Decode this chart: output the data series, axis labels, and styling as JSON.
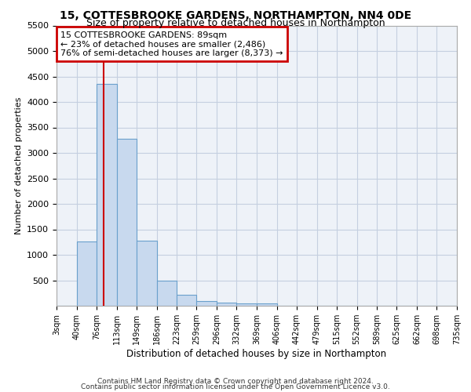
{
  "title": "15, COTTESBROOKE GARDENS, NORTHAMPTON, NN4 0DE",
  "subtitle": "Size of property relative to detached houses in Northampton",
  "xlabel": "Distribution of detached houses by size in Northampton",
  "ylabel": "Number of detached properties",
  "bin_labels": [
    "3sqm",
    "40sqm",
    "76sqm",
    "113sqm",
    "149sqm",
    "186sqm",
    "223sqm",
    "259sqm",
    "296sqm",
    "332sqm",
    "369sqm",
    "406sqm",
    "442sqm",
    "479sqm",
    "515sqm",
    "552sqm",
    "589sqm",
    "625sqm",
    "662sqm",
    "698sqm",
    "735sqm"
  ],
  "bin_edges": [
    3,
    40,
    76,
    113,
    149,
    186,
    223,
    259,
    296,
    332,
    369,
    406,
    442,
    479,
    515,
    552,
    589,
    625,
    662,
    698,
    735
  ],
  "bar_heights": [
    0,
    1255,
    4350,
    3280,
    1280,
    490,
    220,
    100,
    65,
    50,
    50,
    0,
    0,
    0,
    0,
    0,
    0,
    0,
    0,
    0
  ],
  "bar_color": "#c8d9ee",
  "bar_edge_color": "#6aa0cc",
  "property_size": 89,
  "vline_color": "#cc0000",
  "annotation_text": "15 COTTESBROOKE GARDENS: 89sqm\n← 23% of detached houses are smaller (2,486)\n76% of semi-detached houses are larger (8,373) →",
  "annotation_box_color": "#cc0000",
  "annotation_text_color": "#000000",
  "ylim": [
    0,
    5500
  ],
  "yticks": [
    500,
    1000,
    1500,
    2000,
    2500,
    3000,
    3500,
    4000,
    4500,
    5000,
    5500
  ],
  "background_color": "#ffffff",
  "plot_bg_color": "#eef2f8",
  "grid_color": "#c5cfe0",
  "footer_line1": "Contains HM Land Registry data © Crown copyright and database right 2024.",
  "footer_line2": "Contains public sector information licensed under the Open Government Licence v3.0.",
  "title_fontsize": 10,
  "subtitle_fontsize": 9
}
